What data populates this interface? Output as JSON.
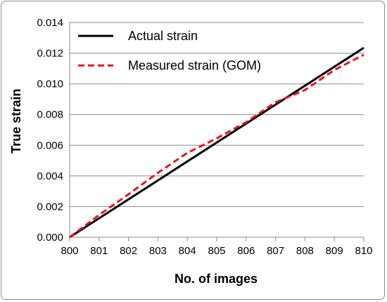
{
  "chart_data": {
    "type": "line",
    "title": "",
    "xlabel": "No. of images",
    "ylabel": "True strain",
    "xlim": [
      800,
      810
    ],
    "ylim": [
      0,
      0.014
    ],
    "xticks": [
      800,
      801,
      802,
      803,
      804,
      805,
      806,
      807,
      808,
      809,
      810
    ],
    "yticks": [
      0.0,
      0.002,
      0.004,
      0.006,
      0.008,
      0.01,
      0.012,
      0.014
    ],
    "xtick_labels": [
      "800",
      "801",
      "802",
      "803",
      "804",
      "805",
      "806",
      "807",
      "808",
      "809",
      "810"
    ],
    "ytick_labels": [
      "0.000",
      "0.002",
      "0.004",
      "0.006",
      "0.008",
      "0.010",
      "0.012",
      "0.014"
    ],
    "grid": "horizontal",
    "legend_position": "top-left",
    "series": [
      {
        "name": "Actual strain",
        "color": "#000000",
        "style": "solid",
        "x": [
          800,
          810
        ],
        "y": [
          0.0,
          0.01235
        ]
      },
      {
        "name": "Measured strain (GOM)",
        "color": "#e8141c",
        "style": "dashed",
        "x": [
          800,
          801,
          802,
          803,
          804,
          805,
          806,
          807,
          808,
          809,
          810
        ],
        "y": [
          0.0,
          0.00145,
          0.0028,
          0.0042,
          0.0055,
          0.00645,
          0.0075,
          0.0088,
          0.0096,
          0.0109,
          0.0119
        ]
      }
    ]
  }
}
